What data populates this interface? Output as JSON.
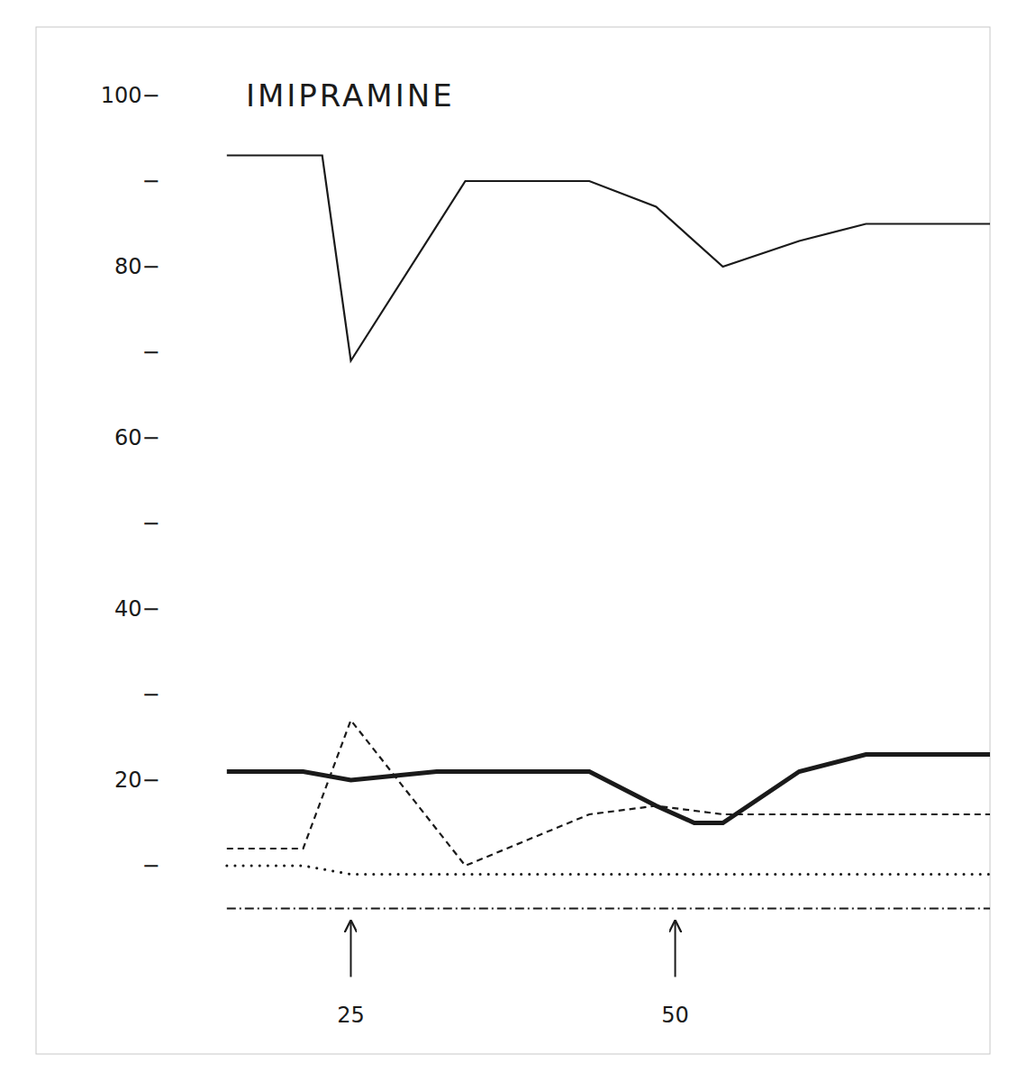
{
  "chart_data": {
    "type": "line",
    "title": "IMIPRAMINE",
    "xlim": [
      0,
      100
    ],
    "ylim": [
      -12,
      108
    ],
    "yticks": [
      {
        "value": 10,
        "label": "−"
      },
      {
        "value": 20,
        "label": "20−"
      },
      {
        "value": 30,
        "label": "−"
      },
      {
        "value": 40,
        "label": "40−"
      },
      {
        "value": 50,
        "label": "−"
      },
      {
        "value": 60,
        "label": "60−"
      },
      {
        "value": 70,
        "label": "−"
      },
      {
        "value": 80,
        "label": "80−"
      },
      {
        "value": 90,
        "label": "−"
      },
      {
        "value": 100,
        "label": "100−"
      }
    ],
    "tick_labels": "y",
    "color": "#1a1a1a",
    "series": [
      {
        "x": [
          20,
          30,
          33,
          45,
          58,
          65,
          72,
          80,
          87,
          100
        ],
        "values": [
          93,
          93,
          69,
          90,
          90,
          87,
          80,
          83,
          85,
          85
        ],
        "line_style": "solid"
      },
      {
        "x": [
          20,
          28,
          33,
          42,
          58,
          65,
          69,
          72,
          80,
          87,
          100
        ],
        "values": [
          21,
          21,
          20,
          21,
          21,
          17,
          15,
          15,
          21,
          23,
          23
        ],
        "line_style": "solid"
      },
      {
        "x": [
          20,
          28,
          33,
          45,
          58,
          65,
          72,
          80,
          87,
          100
        ],
        "values": [
          12,
          12,
          27,
          10,
          16,
          17,
          16,
          16,
          16,
          16
        ],
        "line_style": "dashed"
      },
      {
        "x": [
          20,
          28,
          33,
          45,
          58,
          72,
          87,
          100
        ],
        "values": [
          10,
          10,
          9,
          9,
          9,
          9,
          9,
          9
        ],
        "line_style": "dotted"
      },
      {
        "x": [
          20,
          100
        ],
        "values": [
          5,
          5
        ],
        "line_style": "dashdot"
      }
    ],
    "annotations": [
      {
        "x": 33,
        "text": "25"
      },
      {
        "x": 67,
        "text": "50"
      }
    ]
  }
}
